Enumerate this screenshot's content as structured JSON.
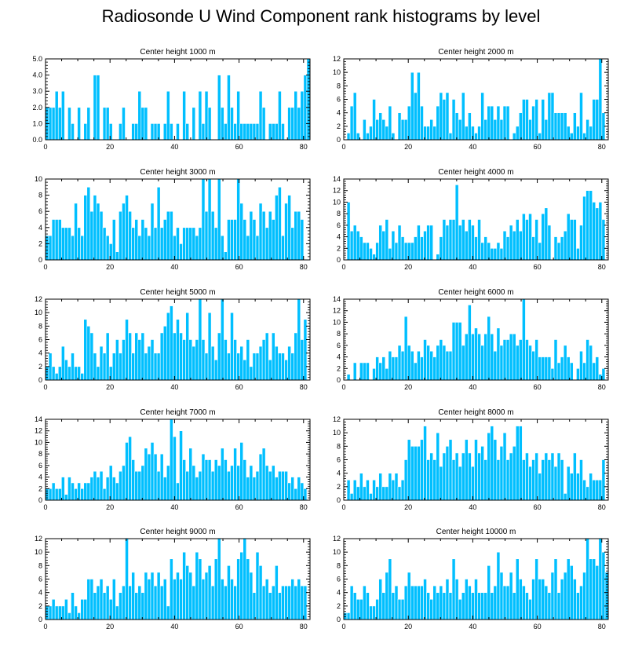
{
  "figure": {
    "title": "Radiosonde U Wind Component rank histograms by level"
  },
  "colors": {
    "bar": "#00bfff",
    "bar_edge": "#ffffff",
    "axis": "#000000"
  },
  "chart_data": [
    {
      "type": "bar",
      "title": "Center height 1000 m",
      "xlim": [
        0,
        82
      ],
      "ylim": [
        0,
        5
      ],
      "xticks": [
        0,
        20,
        40,
        60,
        80
      ],
      "xtick_labels": [
        "0",
        "20",
        "40",
        "60",
        "80"
      ],
      "yticks": [
        0,
        1,
        2,
        3,
        4,
        5
      ],
      "ytick_labels": [
        "0.0",
        "1.0",
        "2.0",
        "3.0",
        "4.0",
        "5.0"
      ],
      "values": [
        2,
        2,
        2,
        3,
        2,
        3,
        0,
        2,
        1,
        0,
        2,
        0,
        1,
        2,
        0,
        4,
        4,
        0,
        2,
        2,
        1,
        0,
        0,
        1,
        2,
        0,
        0,
        1,
        1,
        3,
        2,
        2,
        0,
        1,
        1,
        1,
        0,
        1,
        3,
        1,
        0,
        1,
        0,
        3,
        1,
        0,
        2,
        0,
        3,
        1,
        3,
        2,
        0,
        0,
        4,
        2,
        1,
        4,
        2,
        1,
        3,
        1,
        1,
        1,
        1,
        1,
        1,
        3,
        2,
        0,
        1,
        1,
        1,
        3,
        1,
        0,
        2,
        2,
        3,
        2,
        3,
        4,
        5
      ]
    },
    {
      "type": "bar",
      "title": "Center height 2000 m",
      "xlim": [
        0,
        82
      ],
      "ylim": [
        0,
        12
      ],
      "xticks": [
        0,
        20,
        40,
        60,
        80
      ],
      "xtick_labels": [
        "0",
        "20",
        "40",
        "60",
        "80"
      ],
      "yticks": [
        0,
        2,
        4,
        6,
        8,
        10,
        12
      ],
      "ytick_labels": [
        "0",
        "2",
        "4",
        "6",
        "8",
        "10",
        "12"
      ],
      "values": [
        0,
        1,
        5,
        7,
        1,
        0,
        3,
        1,
        2,
        6,
        3,
        4,
        3,
        2,
        5,
        1,
        0,
        4,
        3,
        3,
        5,
        10,
        7,
        10,
        5,
        2,
        2,
        3,
        2,
        5,
        7,
        6,
        7,
        1,
        6,
        4,
        3,
        7,
        2,
        4,
        2,
        1,
        2,
        7,
        3,
        5,
        5,
        3,
        5,
        3,
        5,
        5,
        0,
        1,
        2,
        4,
        6,
        6,
        3,
        5,
        6,
        1,
        6,
        3,
        7,
        7,
        4,
        4,
        4,
        4,
        2,
        1,
        4,
        2,
        7,
        1,
        3,
        2,
        6,
        6,
        12,
        4,
        0
      ]
    },
    {
      "type": "bar",
      "title": "Center height 3000 m",
      "xlim": [
        0,
        82
      ],
      "ylim": [
        0,
        10
      ],
      "xticks": [
        0,
        20,
        40,
        60,
        80
      ],
      "xtick_labels": [
        "0",
        "20",
        "40",
        "60",
        "80"
      ],
      "yticks": [
        0,
        2,
        4,
        6,
        8,
        10
      ],
      "ytick_labels": [
        "0",
        "2",
        "4",
        "6",
        "8",
        "10"
      ],
      "values": [
        3,
        3,
        5,
        5,
        5,
        4,
        4,
        4,
        3,
        7,
        4,
        3,
        8,
        9,
        6,
        8,
        7,
        6,
        4,
        3,
        2,
        5,
        1,
        6,
        7,
        8,
        6,
        4,
        5,
        3,
        5,
        4,
        3,
        7,
        4,
        9,
        4,
        5,
        6,
        6,
        3,
        4,
        2,
        4,
        4,
        4,
        4,
        3,
        4,
        10,
        6,
        10,
        6,
        4,
        10,
        3,
        1,
        5,
        5,
        5,
        10,
        7,
        5,
        3,
        6,
        5,
        3,
        7,
        6,
        4,
        6,
        5,
        8,
        9,
        3,
        7,
        8,
        4,
        6,
        6,
        5,
        0,
        0
      ]
    },
    {
      "type": "bar",
      "title": "Center height 4000 m",
      "xlim": [
        0,
        82
      ],
      "ylim": [
        0,
        14
      ],
      "xticks": [
        0,
        20,
        40,
        60,
        80
      ],
      "xtick_labels": [
        "0",
        "20",
        "40",
        "60",
        "80"
      ],
      "yticks": [
        0,
        2,
        4,
        6,
        8,
        10,
        12,
        14
      ],
      "ytick_labels": [
        "0",
        "2",
        "4",
        "6",
        "8",
        "10",
        "12",
        "14"
      ],
      "values": [
        0,
        10,
        5,
        6,
        5,
        4,
        3,
        3,
        2,
        1,
        3,
        6,
        5,
        7,
        2,
        5,
        3,
        6,
        4,
        3,
        3,
        3,
        4,
        6,
        4,
        5,
        6,
        6,
        0,
        1,
        4,
        7,
        6,
        7,
        7,
        13,
        6,
        7,
        5,
        7,
        6,
        4,
        7,
        3,
        4,
        3,
        2,
        2,
        3,
        2,
        5,
        4,
        6,
        5,
        7,
        5,
        8,
        7,
        8,
        4,
        7,
        3,
        8,
        9,
        6,
        0,
        4,
        3,
        4,
        5,
        8,
        7,
        7,
        2,
        6,
        11,
        12,
        12,
        10,
        9,
        10,
        7,
        0
      ]
    },
    {
      "type": "bar",
      "title": "Center height 5000 m",
      "xlim": [
        0,
        82
      ],
      "ylim": [
        0,
        12
      ],
      "xticks": [
        0,
        20,
        40,
        60,
        80
      ],
      "xtick_labels": [
        "0",
        "20",
        "40",
        "60",
        "80"
      ],
      "yticks": [
        0,
        2,
        4,
        6,
        8,
        10,
        12
      ],
      "ytick_labels": [
        "0",
        "2",
        "4",
        "6",
        "8",
        "10",
        "12"
      ],
      "values": [
        2,
        4,
        2,
        1,
        2,
        5,
        3,
        2,
        4,
        2,
        2,
        1,
        9,
        8,
        7,
        4,
        2,
        5,
        4,
        7,
        2,
        4,
        6,
        4,
        6,
        9,
        7,
        4,
        7,
        6,
        7,
        4,
        5,
        6,
        4,
        4,
        7,
        8,
        10,
        11,
        7,
        9,
        7,
        6,
        10,
        6,
        5,
        6,
        12,
        6,
        4,
        10,
        5,
        3,
        7,
        12,
        6,
        4,
        10,
        6,
        4,
        5,
        3,
        6,
        2,
        4,
        4,
        5,
        6,
        7,
        3,
        7,
        5,
        4,
        4,
        3,
        5,
        4,
        7,
        12,
        6,
        9,
        0
      ]
    },
    {
      "type": "bar",
      "title": "Center height 6000 m",
      "xlim": [
        0,
        82
      ],
      "ylim": [
        0,
        14
      ],
      "xticks": [
        0,
        20,
        40,
        60,
        80
      ],
      "xtick_labels": [
        "0",
        "20",
        "40",
        "60",
        "80"
      ],
      "yticks": [
        0,
        2,
        4,
        6,
        8,
        10,
        12,
        14
      ],
      "ytick_labels": [
        "0",
        "2",
        "4",
        "6",
        "8",
        "10",
        "12",
        "14"
      ],
      "values": [
        0,
        1,
        0,
        3,
        0,
        3,
        3,
        3,
        0,
        2,
        4,
        3,
        4,
        2,
        5,
        4,
        4,
        6,
        5,
        11,
        6,
        5,
        3,
        5,
        4,
        7,
        6,
        5,
        4,
        6,
        7,
        6,
        5,
        5,
        10,
        10,
        10,
        6,
        8,
        13,
        8,
        9,
        8,
        6,
        8,
        11,
        8,
        5,
        9,
        6,
        7,
        7,
        8,
        8,
        6,
        7,
        14,
        7,
        6,
        5,
        7,
        4,
        4,
        4,
        4,
        2,
        7,
        3,
        4,
        6,
        4,
        3,
        0,
        2,
        5,
        3,
        7,
        6,
        3,
        4,
        1,
        2,
        0
      ]
    },
    {
      "type": "bar",
      "title": "Center height 7000 m",
      "xlim": [
        0,
        82
      ],
      "ylim": [
        0,
        14
      ],
      "xticks": [
        0,
        20,
        40,
        60,
        80
      ],
      "xtick_labels": [
        "0",
        "20",
        "40",
        "60",
        "80"
      ],
      "yticks": [
        0,
        2,
        4,
        6,
        8,
        10,
        12,
        14
      ],
      "ytick_labels": [
        "0",
        "2",
        "4",
        "6",
        "8",
        "10",
        "12",
        "14"
      ],
      "values": [
        2,
        2,
        3,
        2,
        2,
        4,
        1,
        4,
        3,
        2,
        3,
        2,
        3,
        3,
        4,
        5,
        4,
        5,
        2,
        4,
        6,
        4,
        3,
        5,
        6,
        10,
        11,
        7,
        5,
        5,
        6,
        9,
        8,
        10,
        8,
        5,
        8,
        4,
        6,
        14,
        11,
        3,
        12,
        7,
        5,
        9,
        6,
        4,
        5,
        8,
        7,
        7,
        5,
        7,
        6,
        9,
        7,
        5,
        6,
        9,
        6,
        10,
        7,
        4,
        6,
        4,
        5,
        8,
        9,
        6,
        5,
        6,
        4,
        5,
        5,
        5,
        3,
        4,
        2,
        4,
        3,
        2,
        0
      ]
    },
    {
      "type": "bar",
      "title": "Center height 8000 m",
      "xlim": [
        0,
        82
      ],
      "ylim": [
        0,
        12
      ],
      "xticks": [
        0,
        20,
        40,
        60,
        80
      ],
      "xtick_labels": [
        "0",
        "20",
        "40",
        "60",
        "80"
      ],
      "yticks": [
        0,
        2,
        4,
        6,
        8,
        10,
        12
      ],
      "ytick_labels": [
        "0",
        "2",
        "4",
        "6",
        "8",
        "10",
        "12"
      ],
      "values": [
        0,
        3,
        1,
        3,
        2,
        4,
        2,
        3,
        1,
        3,
        2,
        4,
        2,
        2,
        4,
        3,
        4,
        2,
        3,
        6,
        9,
        8,
        8,
        8,
        9,
        11,
        6,
        7,
        6,
        10,
        5,
        7,
        8,
        9,
        6,
        7,
        5,
        7,
        9,
        7,
        5,
        9,
        7,
        8,
        6,
        10,
        11,
        9,
        6,
        8,
        10,
        6,
        7,
        8,
        11,
        11,
        6,
        7,
        5,
        6,
        7,
        4,
        6,
        7,
        6,
        7,
        5,
        7,
        6,
        1,
        5,
        4,
        7,
        4,
        6,
        3,
        2,
        4,
        3,
        3,
        3,
        6,
        0
      ]
    },
    {
      "type": "bar",
      "title": "Center height 9000 m",
      "xlim": [
        0,
        82
      ],
      "ylim": [
        0,
        12
      ],
      "xticks": [
        0,
        20,
        40,
        60,
        80
      ],
      "xtick_labels": [
        "0",
        "20",
        "40",
        "60",
        "80"
      ],
      "yticks": [
        0,
        2,
        4,
        6,
        8,
        10,
        12
      ],
      "ytick_labels": [
        "0",
        "2",
        "4",
        "6",
        "8",
        "10",
        "12"
      ],
      "values": [
        2,
        2,
        3,
        2,
        2,
        2,
        3,
        1,
        4,
        2,
        1,
        3,
        3,
        6,
        6,
        4,
        5,
        6,
        4,
        5,
        3,
        6,
        2,
        4,
        5,
        12,
        5,
        7,
        4,
        5,
        4,
        7,
        6,
        7,
        5,
        7,
        5,
        6,
        2,
        9,
        6,
        7,
        6,
        10,
        8,
        7,
        5,
        10,
        9,
        6,
        7,
        8,
        5,
        9,
        12,
        6,
        5,
        8,
        6,
        5,
        9,
        10,
        12,
        9,
        7,
        4,
        10,
        8,
        5,
        6,
        4,
        5,
        8,
        4,
        5,
        5,
        5,
        6,
        5,
        6,
        5,
        5,
        0
      ]
    },
    {
      "type": "bar",
      "title": "Center height 10000 m",
      "xlim": [
        0,
        82
      ],
      "ylim": [
        0,
        12
      ],
      "xticks": [
        0,
        20,
        40,
        60,
        80
      ],
      "xtick_labels": [
        "0",
        "20",
        "40",
        "60",
        "80"
      ],
      "yticks": [
        0,
        2,
        4,
        6,
        8,
        10,
        12
      ],
      "ytick_labels": [
        "0",
        "2",
        "4",
        "6",
        "8",
        "10",
        "12"
      ],
      "values": [
        1,
        1,
        5,
        4,
        3,
        3,
        5,
        4,
        2,
        2,
        3,
        6,
        4,
        7,
        9,
        4,
        5,
        3,
        3,
        5,
        7,
        5,
        5,
        5,
        5,
        6,
        4,
        3,
        5,
        4,
        5,
        4,
        6,
        4,
        9,
        6,
        3,
        4,
        6,
        5,
        4,
        6,
        4,
        4,
        4,
        8,
        4,
        5,
        10,
        7,
        5,
        5,
        7,
        4,
        9,
        6,
        5,
        4,
        3,
        6,
        9,
        6,
        6,
        5,
        4,
        7,
        9,
        4,
        6,
        7,
        9,
        8,
        6,
        4,
        5,
        7,
        12,
        9,
        9,
        8,
        12,
        10,
        7
      ]
    }
  ]
}
